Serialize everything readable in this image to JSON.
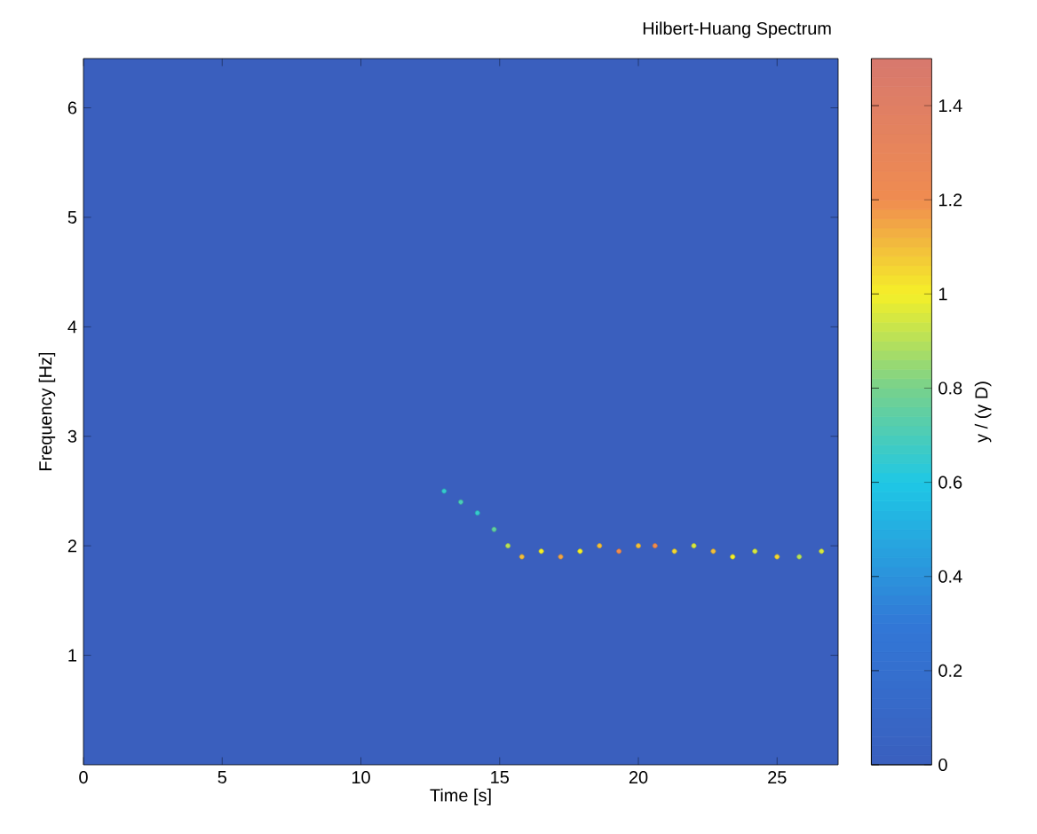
{
  "chart_data": {
    "type": "scatter",
    "title": "Hilbert-Huang Spectrum",
    "xlabel": "Time [s]",
    "ylabel": "Frequency [Hz]",
    "clabel": "y / (γ D)",
    "x": [
      13.0,
      13.6,
      14.2,
      14.8,
      15.3,
      15.8,
      16.5,
      17.2,
      17.9,
      18.6,
      19.3,
      20.0,
      20.6,
      21.3,
      22.0,
      22.7,
      23.4,
      24.2,
      25.0,
      25.8,
      26.6
    ],
    "values": [
      2.5,
      2.4,
      2.3,
      2.15,
      2.0,
      1.9,
      1.95,
      1.9,
      1.95,
      2.0,
      1.95,
      2.0,
      2.0,
      1.95,
      2.0,
      1.95,
      1.9,
      1.95,
      1.9,
      1.9,
      1.95
    ],
    "cvalues": [
      0.65,
      0.7,
      0.65,
      0.75,
      0.9,
      1.1,
      1.0,
      1.15,
      1.0,
      1.1,
      1.2,
      1.1,
      1.2,
      1.05,
      0.95,
      1.1,
      1.0,
      0.95,
      1.05,
      0.9,
      0.95
    ],
    "marker": "circle",
    "xlim": [
      0,
      27.2
    ],
    "ylim": [
      0,
      6.45
    ],
    "xticks": [
      0,
      5,
      10,
      15,
      20,
      25
    ],
    "yticks": [
      1,
      2,
      3,
      4,
      5,
      6
    ],
    "clim": [
      0,
      1.5
    ],
    "cticks": [
      0,
      0.2,
      0.4,
      0.6,
      0.8,
      1,
      1.2,
      1.4
    ]
  }
}
